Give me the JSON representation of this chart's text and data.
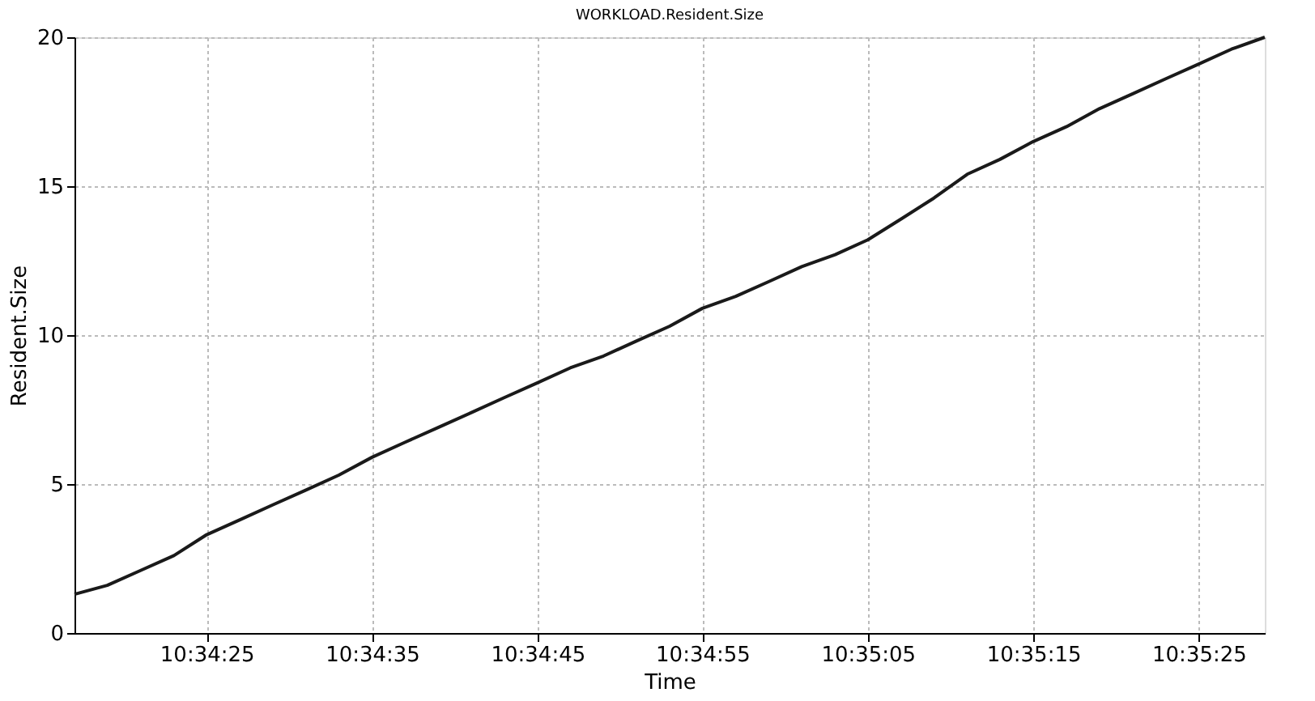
{
  "chart_data": {
    "type": "line",
    "title": "WORKLOAD.Resident.Size",
    "xlabel": "Time",
    "ylabel": "Resident.Size",
    "x": [
      10.57139,
      10.57194,
      10.5725,
      10.57306,
      10.57361,
      10.57417,
      10.57472,
      10.57528,
      10.57583,
      10.57639,
      10.57694,
      10.5775,
      10.57806,
      10.57861,
      10.57917,
      10.57972,
      10.58028,
      10.58083,
      10.58139,
      10.58194,
      10.5825,
      10.58306,
      10.58361,
      10.58417,
      10.58472,
      10.58528,
      10.58583,
      10.58639,
      10.58694,
      10.5875,
      10.58806,
      10.58861,
      10.58917,
      10.58972,
      10.59028,
      10.59083,
      10.59139
    ],
    "series": [
      {
        "color": "#1a1a1a",
        "values": [
          1.3,
          1.6,
          2.1,
          2.6,
          3.3,
          3.8,
          4.3,
          4.8,
          5.3,
          5.9,
          6.4,
          6.9,
          7.4,
          7.9,
          8.4,
          8.9,
          9.3,
          9.8,
          10.3,
          10.9,
          11.3,
          11.8,
          12.3,
          12.7,
          13.2,
          13.9,
          14.6,
          15.4,
          15.9,
          16.5,
          17.0,
          17.6,
          18.1,
          18.6,
          19.1,
          19.6,
          20.0
        ]
      }
    ],
    "xlim": [
      10.57139,
      10.59139
    ],
    "xticks": [
      {
        "value": 10.57361,
        "label": "10:34:25"
      },
      {
        "value": 10.57639,
        "label": "10:34:35"
      },
      {
        "value": 10.57917,
        "label": "10:34:45"
      },
      {
        "value": 10.58194,
        "label": "10:34:55"
      },
      {
        "value": 10.58472,
        "label": "10:35:05"
      },
      {
        "value": 10.5875,
        "label": "10:35:15"
      },
      {
        "value": 10.59028,
        "label": "10:35:25"
      }
    ],
    "ylim": [
      0,
      20
    ],
    "yticks": [
      0,
      5,
      10,
      15,
      20
    ],
    "grid": true,
    "marker": "none",
    "line_style": "solid"
  }
}
